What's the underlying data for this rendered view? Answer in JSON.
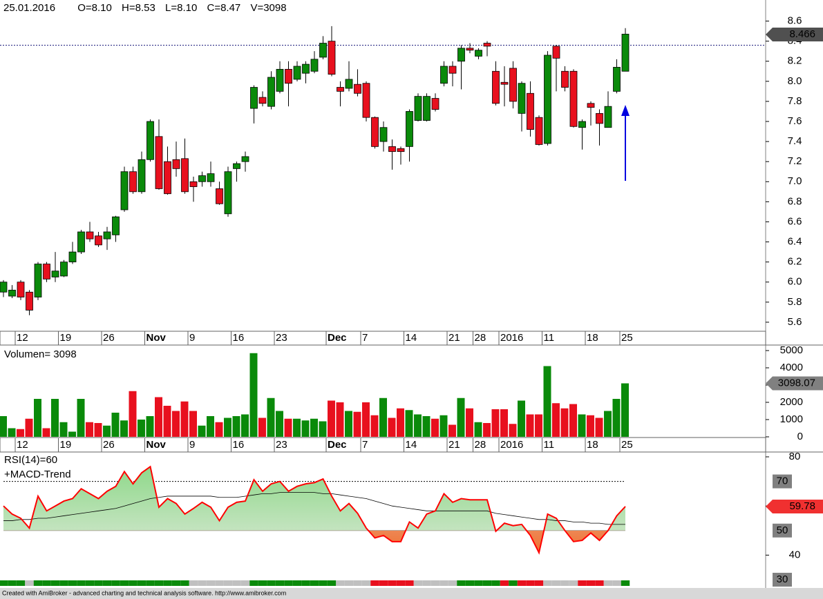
{
  "chart_data": [
    {
      "type": "candlestick",
      "title": "25.01.2016",
      "readout": [
        "O=8.10",
        "H=8.53",
        "L=8.10",
        "C=8.47",
        "V=3098"
      ],
      "categories": [
        null,
        null,
        "12",
        null,
        null,
        null,
        null,
        "19",
        null,
        null,
        null,
        null,
        "26",
        null,
        null,
        null,
        null,
        "Nov",
        null,
        null,
        null,
        null,
        "9",
        null,
        null,
        null,
        null,
        "16",
        null,
        null,
        null,
        null,
        "23",
        null,
        null,
        null,
        null,
        null,
        "Dec",
        null,
        null,
        null,
        "7",
        null,
        null,
        null,
        null,
        "14",
        null,
        null,
        null,
        null,
        "21",
        null,
        null,
        "28",
        null,
        null,
        "2016",
        null,
        null,
        null,
        null,
        "11",
        null,
        null,
        null,
        null,
        "18",
        null,
        null,
        null,
        "25"
      ],
      "open": [
        5.9,
        5.86,
        6.0,
        5.9,
        5.85,
        6.18,
        6.05,
        6.06,
        6.2,
        6.3,
        6.5,
        6.46,
        6.43,
        6.47,
        6.72,
        7.1,
        6.9,
        7.22,
        7.45,
        7.2,
        7.22,
        7.23,
        7.0,
        7.0,
        7.0,
        6.93,
        6.68,
        7.13,
        7.2,
        7.73,
        7.84,
        7.75,
        7.9,
        8.12,
        8.02,
        8.08,
        8.1,
        8.24,
        8.4,
        7.94,
        7.93,
        7.97,
        7.98,
        7.64,
        7.4,
        7.35,
        7.33,
        7.35,
        7.61,
        7.61,
        7.83,
        7.98,
        8.15,
        8.2,
        8.33,
        8.25,
        8.38,
        8.1,
        7.99,
        8.13,
        7.68,
        7.88,
        7.64,
        7.38,
        8.35,
        8.1,
        8.1,
        7.54,
        7.78,
        7.68,
        7.54,
        7.9,
        8.1
      ],
      "high": [
        6.02,
        5.97,
        6.02,
        5.92,
        6.2,
        6.2,
        6.3,
        6.22,
        6.4,
        6.52,
        6.6,
        6.5,
        6.55,
        6.66,
        7.15,
        7.15,
        7.3,
        7.62,
        7.62,
        7.35,
        7.4,
        7.43,
        7.05,
        7.1,
        7.2,
        7.0,
        7.15,
        7.2,
        7.3,
        7.96,
        7.9,
        8.1,
        8.2,
        8.2,
        8.2,
        8.2,
        8.3,
        8.45,
        8.55,
        8.0,
        8.2,
        8.12,
        8.0,
        7.65,
        7.6,
        7.42,
        7.35,
        7.72,
        7.88,
        7.88,
        7.88,
        8.2,
        8.2,
        8.36,
        8.38,
        8.33,
        8.4,
        8.2,
        8.15,
        8.2,
        8.0,
        8.0,
        7.66,
        8.3,
        8.36,
        8.15,
        8.12,
        7.62,
        7.8,
        7.72,
        7.9,
        8.22,
        8.53
      ],
      "low": [
        5.85,
        5.84,
        5.82,
        5.67,
        5.82,
        6.0,
        6.0,
        6.05,
        6.18,
        6.28,
        6.4,
        6.35,
        6.32,
        6.4,
        6.7,
        6.88,
        6.88,
        7.2,
        6.92,
        6.87,
        7.05,
        6.88,
        6.8,
        6.95,
        6.95,
        6.77,
        6.65,
        7.0,
        7.1,
        7.58,
        7.75,
        7.72,
        7.88,
        7.75,
        8.0,
        7.98,
        8.08,
        8.22,
        8.05,
        7.75,
        7.9,
        7.85,
        7.6,
        7.33,
        7.3,
        7.12,
        7.17,
        7.2,
        7.6,
        7.6,
        7.7,
        7.95,
        7.95,
        7.92,
        8.28,
        8.22,
        8.25,
        7.76,
        7.75,
        7.73,
        7.5,
        7.45,
        7.36,
        7.36,
        7.9,
        7.9,
        7.54,
        7.32,
        7.56,
        7.36,
        7.54,
        7.88,
        8.1
      ],
      "close": [
        6.0,
        5.92,
        5.85,
        5.72,
        6.18,
        6.03,
        6.11,
        6.2,
        6.3,
        6.5,
        6.43,
        6.37,
        6.5,
        6.65,
        7.1,
        6.9,
        7.22,
        7.6,
        6.93,
        6.88,
        7.13,
        6.9,
        6.95,
        7.06,
        7.08,
        6.78,
        7.1,
        7.18,
        7.25,
        7.94,
        7.78,
        8.04,
        8.12,
        7.98,
        8.15,
        8.17,
        8.22,
        8.38,
        8.07,
        7.9,
        8.02,
        7.88,
        7.64,
        7.35,
        7.54,
        7.3,
        7.3,
        7.7,
        7.85,
        7.85,
        7.72,
        8.15,
        8.08,
        8.33,
        8.31,
        8.31,
        8.35,
        7.78,
        7.97,
        7.8,
        7.98,
        7.52,
        7.37,
        8.26,
        8.23,
        7.94,
        7.55,
        7.6,
        7.74,
        7.58,
        7.75,
        8.14,
        8.47
      ],
      "up_color": "#0a8a0a",
      "down_color": "#e8101e",
      "ylim": [
        5.51,
        8.81
      ],
      "yticks": [
        5.6,
        5.8,
        {
          "value": 6,
          "label": "6.0"
        },
        6.2,
        6.4,
        6.6,
        6.8,
        {
          "value": 7,
          "label": "7.0"
        },
        7.2,
        7.4,
        7.6,
        7.8,
        {
          "value": 8,
          "label": "8.0"
        },
        8.2,
        8.4,
        8.6
      ],
      "hline": 8.36,
      "hline_color": "#1a1a7a",
      "last_value": 8.466
    },
    {
      "type": "bar",
      "title": "Volumen= 3098",
      "categories": [
        null,
        null,
        "12",
        null,
        null,
        null,
        null,
        "19",
        null,
        null,
        null,
        null,
        "26",
        null,
        null,
        null,
        null,
        "Nov",
        null,
        null,
        null,
        null,
        "9",
        null,
        null,
        null,
        null,
        "16",
        null,
        null,
        null,
        null,
        "23",
        null,
        null,
        null,
        null,
        null,
        "Dec",
        null,
        null,
        null,
        "7",
        null,
        null,
        null,
        null,
        "14",
        null,
        null,
        null,
        null,
        "21",
        null,
        null,
        "28",
        null,
        null,
        "2016",
        null,
        null,
        null,
        null,
        "11",
        null,
        null,
        null,
        null,
        "18",
        null,
        null,
        null,
        "25"
      ],
      "values": [
        1200,
        500,
        450,
        1050,
        2200,
        500,
        2200,
        850,
        300,
        2200,
        850,
        800,
        650,
        1400,
        950,
        2650,
        1000,
        1200,
        2300,
        1800,
        1500,
        2050,
        1500,
        650,
        1200,
        850,
        1100,
        1200,
        1300,
        4850,
        1100,
        2250,
        1500,
        1050,
        1050,
        950,
        1050,
        900,
        2100,
        2000,
        1500,
        1450,
        2000,
        1250,
        2250,
        1100,
        1650,
        1550,
        1300,
        1200,
        1050,
        1250,
        700,
        2250,
        1650,
        850,
        800,
        1600,
        1600,
        750,
        2100,
        1300,
        1300,
        4100,
        1950,
        1650,
        1900,
        1300,
        1250,
        1100,
        1500,
        2200,
        3100
      ],
      "ylim": [
        -40,
        5320
      ],
      "yticks": [
        0,
        1000,
        2000,
        3000,
        4000,
        5000
      ],
      "last_value": 3098.07
    },
    {
      "type": "line",
      "title": "RSI(14)=60",
      "subtitle": "+MACD-Trend",
      "values": [
        60,
        56.7,
        55,
        51,
        64,
        58,
        60,
        62,
        63,
        67,
        65,
        63,
        66,
        68,
        74,
        69,
        73.5,
        76,
        59.5,
        63,
        61,
        56.7,
        59,
        61.5,
        59.5,
        54,
        59.5,
        61.5,
        62,
        70.7,
        66,
        69,
        70,
        66,
        68,
        69,
        69.5,
        71,
        64,
        58,
        61,
        57,
        51,
        47,
        48,
        45.5,
        45.5,
        53.5,
        51,
        56.7,
        58,
        65,
        61.5,
        63,
        62.5,
        62.5,
        62.5,
        49.7,
        53,
        52,
        52.5,
        48,
        41,
        56.7,
        55,
        50,
        45.5,
        46,
        49,
        46,
        50,
        56,
        59.78
      ],
      "average": [
        54,
        54,
        54.5,
        54.5,
        55,
        55,
        55.5,
        56,
        56.5,
        57,
        57.5,
        58,
        58.5,
        59,
        60,
        61,
        62,
        63,
        63.5,
        64,
        64,
        64,
        64,
        64,
        64,
        63.5,
        63.5,
        63.5,
        64,
        64.5,
        65,
        65,
        65.5,
        65.5,
        65.5,
        65.5,
        65.5,
        65,
        65,
        64.5,
        64,
        63.5,
        63,
        62,
        61,
        60,
        59.5,
        59,
        58.5,
        58,
        58,
        58,
        58,
        58,
        58,
        58,
        58,
        57,
        56.5,
        56,
        55.5,
        55,
        54.5,
        54.5,
        54,
        54,
        53.5,
        53.5,
        53,
        53,
        52.5,
        52.5,
        52.5
      ],
      "color": "#ff0000",
      "average_color": "#000000",
      "ylim": [
        27.2,
        81.4
      ],
      "yticks": [
        40,
        60,
        80
      ],
      "levels": [
        30,
        50,
        70
      ],
      "last_value": 59.78,
      "macd_trend": [
        "up",
        "up",
        "up",
        "flat",
        "up",
        "up",
        "up",
        "up",
        "up",
        "up",
        "up",
        "up",
        "up",
        "up",
        "up",
        "up",
        "up",
        "up",
        "up",
        "up",
        "up",
        "up",
        "flat",
        "flat",
        "flat",
        "flat",
        "flat",
        "flat",
        "flat",
        "up",
        "up",
        "up",
        "up",
        "up",
        "up",
        "up",
        "up",
        "up",
        "up",
        "flat",
        "flat",
        "flat",
        "flat",
        "down",
        "down",
        "down",
        "down",
        "down",
        "flat",
        "flat",
        "flat",
        "flat",
        "flat",
        "up",
        "up",
        "up",
        "up",
        "up",
        "down",
        "up",
        "down",
        "down",
        "down",
        "flat",
        "flat",
        "flat",
        "flat",
        "down",
        "down",
        "down",
        "flat",
        "flat",
        "up"
      ],
      "macd_colors": {
        "up": "#0a8a0a",
        "down": "#e8101e",
        "flat": "#c0c0c0"
      }
    }
  ],
  "footer": "Created with AmiBroker - advanced charting and technical analysis software. http://www.amibroker.com"
}
